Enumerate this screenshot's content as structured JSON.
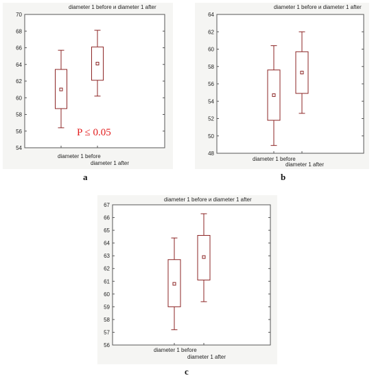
{
  "chart_data": [
    {
      "panel": "a",
      "type": "box",
      "header": "diameter 1 before и diameter 1 after",
      "categories": [
        "diameter 1 before",
        "diameter 1 after"
      ],
      "ylim": [
        54,
        70
      ],
      "yticks": [
        54,
        56,
        58,
        60,
        62,
        64,
        66,
        68,
        70
      ],
      "series": [
        {
          "center": 61.0,
          "box_low": 58.7,
          "box_high": 63.4,
          "whisker_low": 56.4,
          "whisker_high": 65.7
        },
        {
          "center": 64.1,
          "box_low": 62.1,
          "box_high": 66.1,
          "whisker_low": 60.2,
          "whisker_high": 68.1
        }
      ],
      "annotation": "P ≤ 0.05",
      "annotation_value": 55.5,
      "caption": "a"
    },
    {
      "panel": "b",
      "type": "box",
      "header": "diameter 1 before и diameter 1 after",
      "categories": [
        "diameter 1 before",
        "diameter 1 after"
      ],
      "ylim": [
        48,
        64
      ],
      "yticks": [
        48,
        50,
        52,
        54,
        56,
        58,
        60,
        62,
        64
      ],
      "series": [
        {
          "center": 54.7,
          "box_low": 51.8,
          "box_high": 57.6,
          "whisker_low": 48.9,
          "whisker_high": 60.4
        },
        {
          "center": 57.3,
          "box_low": 54.9,
          "box_high": 59.7,
          "whisker_low": 52.6,
          "whisker_high": 62.0
        }
      ],
      "caption": "b"
    },
    {
      "panel": "c",
      "type": "box",
      "header": "diameter 1 before и diameter 1 after",
      "categories": [
        "diameter 1 before",
        "diameter 1 after"
      ],
      "ylim": [
        56,
        67
      ],
      "yticks": [
        56,
        57,
        58,
        59,
        60,
        61,
        62,
        63,
        64,
        65,
        66,
        67
      ],
      "series": [
        {
          "center": 60.8,
          "box_low": 59.0,
          "box_high": 62.7,
          "whisker_low": 57.2,
          "whisker_high": 64.4
        },
        {
          "center": 62.9,
          "box_low": 61.1,
          "box_high": 64.6,
          "whisker_low": 59.4,
          "whisker_high": 66.3
        }
      ],
      "caption": "c"
    }
  ]
}
